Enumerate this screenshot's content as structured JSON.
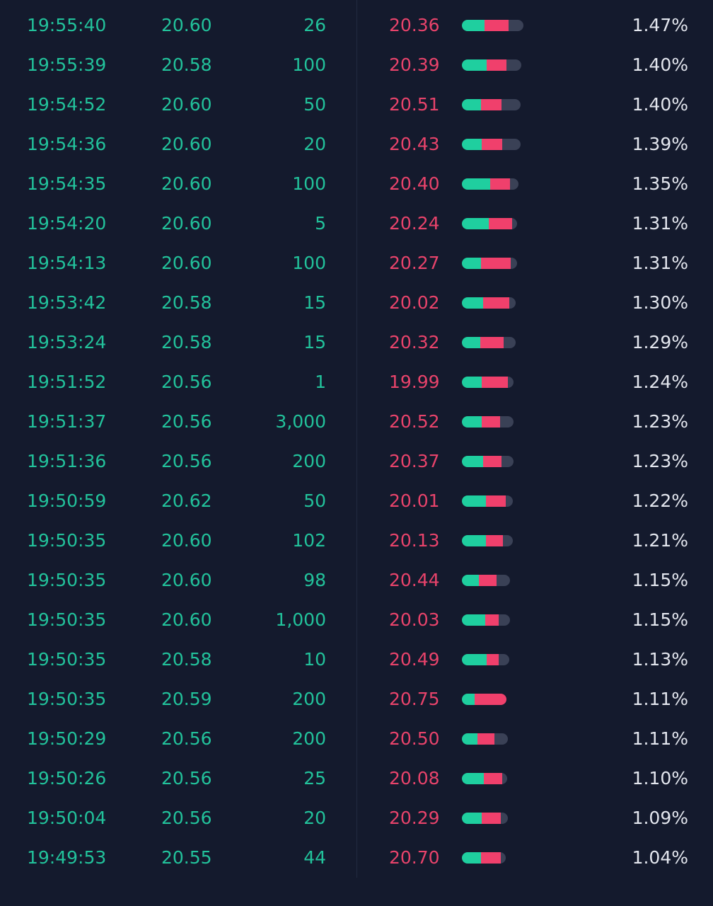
{
  "trades": {
    "rows": [
      [
        "19:55:40",
        "20.60",
        "26"
      ],
      [
        "19:55:39",
        "20.58",
        "100"
      ],
      [
        "19:54:52",
        "20.60",
        "50"
      ],
      [
        "19:54:36",
        "20.60",
        "20"
      ],
      [
        "19:54:35",
        "20.60",
        "100"
      ],
      [
        "19:54:20",
        "20.60",
        "5"
      ],
      [
        "19:54:13",
        "20.60",
        "100"
      ],
      [
        "19:53:42",
        "20.58",
        "15"
      ],
      [
        "19:53:24",
        "20.58",
        "15"
      ],
      [
        "19:51:52",
        "20.56",
        "1"
      ],
      [
        "19:51:37",
        "20.56",
        "3,000"
      ],
      [
        "19:51:36",
        "20.56",
        "200"
      ],
      [
        "19:50:59",
        "20.62",
        "50"
      ],
      [
        "19:50:35",
        "20.60",
        "102"
      ],
      [
        "19:50:35",
        "20.60",
        "98"
      ],
      [
        "19:50:35",
        "20.60",
        "1,000"
      ],
      [
        "19:50:35",
        "20.58",
        "10"
      ],
      [
        "19:50:35",
        "20.59",
        "200"
      ],
      [
        "19:50:29",
        "20.56",
        "200"
      ],
      [
        "19:50:26",
        "20.56",
        "25"
      ],
      [
        "19:50:04",
        "20.56",
        "20"
      ],
      [
        "19:49:53",
        "20.55",
        "44"
      ]
    ]
  },
  "movers": {
    "rows": [
      {
        "price": "20.36",
        "bar": [
          32,
          34,
          21
        ],
        "change": "1.47%"
      },
      {
        "price": "20.39",
        "bar": [
          35,
          28,
          21
        ],
        "change": "1.40%"
      },
      {
        "price": "20.51",
        "bar": [
          27,
          29,
          27
        ],
        "change": "1.40%"
      },
      {
        "price": "20.43",
        "bar": [
          28,
          29,
          26
        ],
        "change": "1.39%"
      },
      {
        "price": "20.40",
        "bar": [
          40,
          28,
          12
        ],
        "change": "1.35%"
      },
      {
        "price": "20.24",
        "bar": [
          38,
          33,
          7
        ],
        "change": "1.31%"
      },
      {
        "price": "20.27",
        "bar": [
          27,
          42,
          9
        ],
        "change": "1.31%"
      },
      {
        "price": "20.02",
        "bar": [
          30,
          37,
          9
        ],
        "change": "1.30%"
      },
      {
        "price": "20.32",
        "bar": [
          26,
          33,
          17
        ],
        "change": "1.29%"
      },
      {
        "price": "19.99",
        "bar": [
          28,
          37,
          8
        ],
        "change": "1.24%"
      },
      {
        "price": "20.52",
        "bar": [
          28,
          26,
          19
        ],
        "change": "1.23%"
      },
      {
        "price": "20.37",
        "bar": [
          30,
          26,
          17
        ],
        "change": "1.23%"
      },
      {
        "price": "20.01",
        "bar": [
          34,
          28,
          10
        ],
        "change": "1.22%"
      },
      {
        "price": "20.13",
        "bar": [
          34,
          24,
          14
        ],
        "change": "1.21%"
      },
      {
        "price": "20.44",
        "bar": [
          24,
          25,
          19
        ],
        "change": "1.15%"
      },
      {
        "price": "20.03",
        "bar": [
          33,
          19,
          16
        ],
        "change": "1.15%"
      },
      {
        "price": "20.49",
        "bar": [
          35,
          17,
          15
        ],
        "change": "1.13%"
      },
      {
        "price": "20.75",
        "bar": [
          18,
          45,
          0
        ],
        "change": "1.11%"
      },
      {
        "price": "20.50",
        "bar": [
          22,
          24,
          19
        ],
        "change": "1.11%"
      },
      {
        "price": "20.08",
        "bar": [
          31,
          26,
          7
        ],
        "change": "1.10%"
      },
      {
        "price": "20.29",
        "bar": [
          28,
          27,
          10
        ],
        "change": "1.09%"
      },
      {
        "price": "20.70",
        "bar": [
          27,
          28,
          7
        ],
        "change": "1.04%"
      }
    ]
  }
}
